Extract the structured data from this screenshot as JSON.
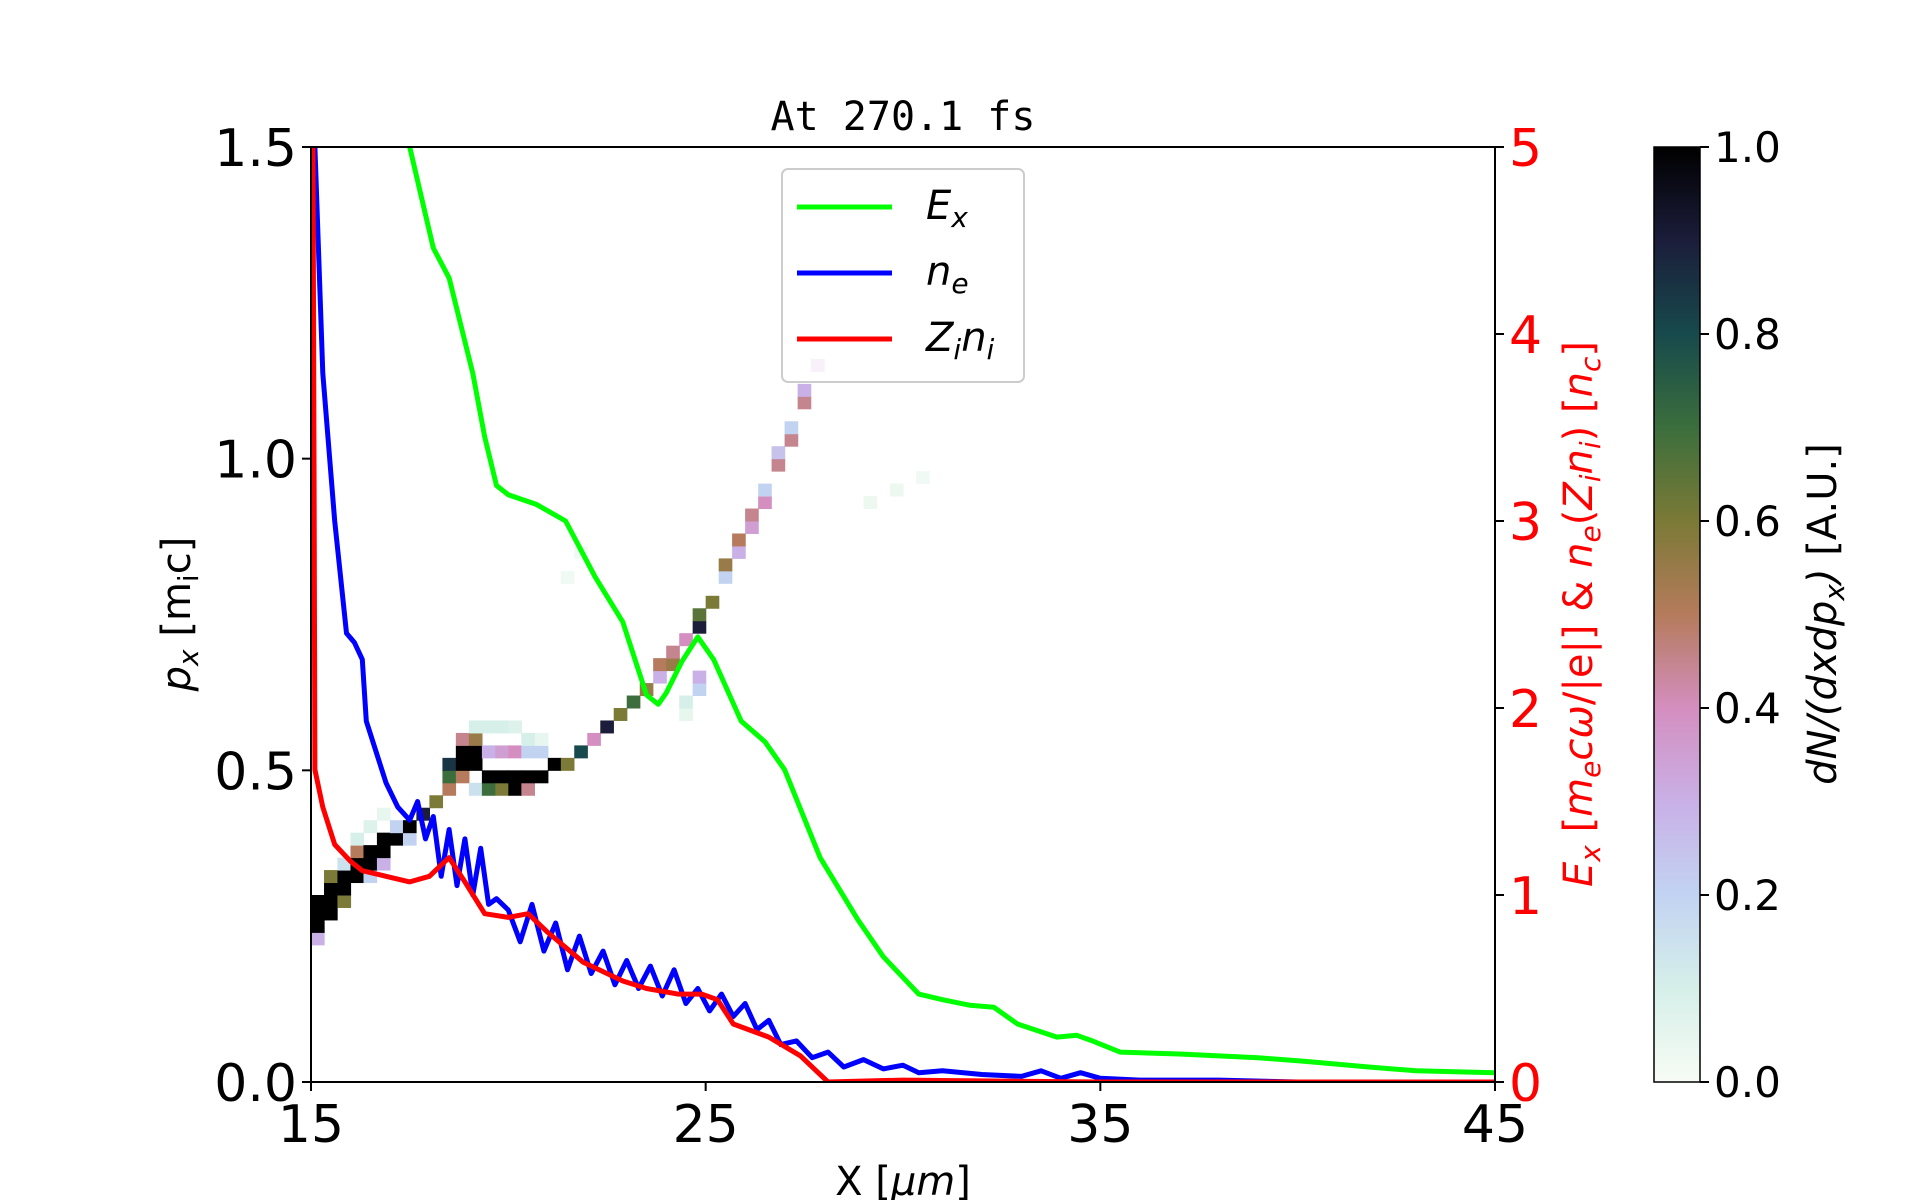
{
  "chart_data": {
    "type": "heatmap+line",
    "title": "At 270.1 fs",
    "xlabel": [
      {
        "t": "X  [",
        "s": 0
      },
      {
        "t": "μm",
        "s": 0,
        "i": 1
      },
      {
        "t": "]",
        "s": 0
      }
    ],
    "ylabel": [
      {
        "t": "p",
        "s": 0,
        "i": 1
      },
      {
        "t": "x",
        "s": 1,
        "i": 1
      },
      {
        "t": "  [m",
        "s": 0
      },
      {
        "t": "i",
        "s": 1
      },
      {
        "t": "c]",
        "s": 0
      }
    ],
    "y2label": [
      {
        "t": "E",
        "s": 0,
        "i": 1
      },
      {
        "t": "x",
        "s": 1,
        "i": 1
      },
      {
        "t": "  [",
        "s": 0
      },
      {
        "t": "m",
        "s": 0,
        "i": 1
      },
      {
        "t": "e",
        "s": 1,
        "i": 1
      },
      {
        "t": "cω",
        "s": 0,
        "i": 1
      },
      {
        "t": "/|e|]  &  ",
        "s": 0
      },
      {
        "t": "n",
        "s": 0,
        "i": 1
      },
      {
        "t": "e",
        "s": 1,
        "i": 1
      },
      {
        "t": "(",
        "s": 0
      },
      {
        "t": "Z",
        "s": 0,
        "i": 1
      },
      {
        "t": "i",
        "s": 1,
        "i": 1
      },
      {
        "t": "n",
        "s": 0,
        "i": 1
      },
      {
        "t": "i",
        "s": 1,
        "i": 1
      },
      {
        "t": ")  [",
        "s": 0
      },
      {
        "t": "n",
        "s": 0,
        "i": 1
      },
      {
        "t": "c",
        "s": 1,
        "i": 1
      },
      {
        "t": "]",
        "s": 0
      }
    ],
    "colorbar_label": [
      {
        "t": "dN/(dxdp",
        "s": 0,
        "i": 1
      },
      {
        "t": "x",
        "s": 1,
        "i": 1
      },
      {
        "t": ")",
        "s": 0,
        "i": 1
      },
      {
        "t": "  [A.U.]",
        "s": 0
      }
    ],
    "xlim": [
      15,
      45
    ],
    "ylim": [
      0,
      1.5
    ],
    "y2lim": [
      0,
      5
    ],
    "clim": [
      0,
      1
    ],
    "xticks": [
      "15",
      "25",
      "35",
      "45"
    ],
    "yticks": [
      "0.0",
      "0.5",
      "1.0",
      "1.5"
    ],
    "y2ticks": [
      "0",
      "1",
      "2",
      "3",
      "4",
      "5"
    ],
    "cticks": [
      "0.0",
      "0.2",
      "0.4",
      "0.6",
      "0.8",
      "1.0"
    ],
    "y2_color": "#ff0000",
    "grid": false,
    "legend_position": "top-center",
    "colormap": [
      "#f7fcf5",
      "#d6efe9",
      "#c2d3f2",
      "#c9b0e6",
      "#d48ebf",
      "#b57b5c",
      "#7b7a36",
      "#3b6e3c",
      "#174a4c",
      "#1b1d3a",
      "#000000"
    ],
    "heatmap_cells": [
      [
        15.0,
        0.22,
        0.3
      ],
      [
        15.0,
        0.24,
        1
      ],
      [
        15.0,
        0.26,
        1
      ],
      [
        15.0,
        0.28,
        1
      ],
      [
        15.33,
        0.26,
        1
      ],
      [
        15.33,
        0.28,
        1
      ],
      [
        15.33,
        0.3,
        1
      ],
      [
        15.33,
        0.32,
        0.6
      ],
      [
        15.67,
        0.28,
        0.6
      ],
      [
        15.67,
        0.3,
        1
      ],
      [
        15.67,
        0.32,
        1
      ],
      [
        15.67,
        0.34,
        0.15
      ],
      [
        16.0,
        0.32,
        1
      ],
      [
        16.0,
        0.34,
        1
      ],
      [
        16.0,
        0.36,
        0.5
      ],
      [
        16.0,
        0.38,
        0.1
      ],
      [
        16.33,
        0.32,
        0.2
      ],
      [
        16.33,
        0.34,
        1
      ],
      [
        16.33,
        0.36,
        1
      ],
      [
        16.33,
        0.4,
        0.08
      ],
      [
        16.67,
        0.34,
        0.3
      ],
      [
        16.67,
        0.36,
        1
      ],
      [
        16.67,
        0.38,
        1
      ],
      [
        16.67,
        0.42,
        0.05
      ],
      [
        17.0,
        0.38,
        1
      ],
      [
        17.0,
        0.4,
        0.2
      ],
      [
        17.33,
        0.38,
        0.2
      ],
      [
        17.33,
        0.4,
        1
      ],
      [
        17.67,
        0.42,
        0.9
      ],
      [
        18.0,
        0.44,
        0.6
      ],
      [
        18.33,
        0.46,
        0.5
      ],
      [
        18.33,
        0.48,
        0.7
      ],
      [
        18.33,
        0.5,
        0.85
      ],
      [
        18.67,
        0.48,
        0.5
      ],
      [
        18.67,
        0.5,
        1
      ],
      [
        18.67,
        0.52,
        1
      ],
      [
        18.67,
        0.54,
        0.45
      ],
      [
        19.0,
        0.46,
        0.15
      ],
      [
        19.0,
        0.5,
        1
      ],
      [
        19.0,
        0.52,
        1
      ],
      [
        19.0,
        0.54,
        0.55
      ],
      [
        19.0,
        0.56,
        0.1
      ],
      [
        19.33,
        0.46,
        0.7
      ],
      [
        19.33,
        0.48,
        1
      ],
      [
        19.33,
        0.52,
        0.3
      ],
      [
        19.33,
        0.56,
        0.1
      ],
      [
        19.67,
        0.46,
        0.6
      ],
      [
        19.67,
        0.48,
        1
      ],
      [
        19.67,
        0.52,
        0.35
      ],
      [
        19.67,
        0.56,
        0.1
      ],
      [
        20.0,
        0.46,
        1
      ],
      [
        20.0,
        0.48,
        1
      ],
      [
        20.0,
        0.52,
        0.4
      ],
      [
        20.0,
        0.56,
        0.08
      ],
      [
        20.33,
        0.46,
        0.45
      ],
      [
        20.33,
        0.48,
        1
      ],
      [
        20.33,
        0.52,
        0.2
      ],
      [
        20.33,
        0.54,
        0.1
      ],
      [
        20.67,
        0.48,
        1
      ],
      [
        20.67,
        0.52,
        0.2
      ],
      [
        20.67,
        0.54,
        0.05
      ],
      [
        21.0,
        0.5,
        1
      ],
      [
        21.33,
        0.5,
        0.6
      ],
      [
        21.67,
        0.52,
        0.8
      ],
      [
        22.0,
        0.54,
        0.4
      ],
      [
        22.33,
        0.56,
        0.9
      ],
      [
        22.67,
        0.58,
        0.6
      ],
      [
        23.0,
        0.6,
        0.7
      ],
      [
        23.33,
        0.62,
        0.55
      ],
      [
        23.67,
        0.64,
        0.3
      ],
      [
        23.67,
        0.66,
        0.5
      ],
      [
        24.0,
        0.66,
        0.55
      ],
      [
        24.0,
        0.68,
        0.45
      ],
      [
        24.33,
        0.7,
        0.4
      ],
      [
        24.33,
        0.58,
        0.05
      ],
      [
        24.33,
        0.6,
        0.1
      ],
      [
        24.67,
        0.62,
        0.2
      ],
      [
        24.67,
        0.64,
        0.3
      ],
      [
        24.67,
        0.72,
        0.9
      ],
      [
        24.67,
        0.74,
        0.65
      ],
      [
        25.0,
        0.76,
        0.6
      ],
      [
        25.33,
        0.8,
        0.2
      ],
      [
        25.33,
        0.82,
        0.55
      ],
      [
        25.67,
        0.84,
        0.3
      ],
      [
        25.67,
        0.86,
        0.5
      ],
      [
        26.0,
        0.88,
        0.35
      ],
      [
        26.0,
        0.9,
        0.45
      ],
      [
        26.33,
        0.92,
        0.4
      ],
      [
        26.33,
        0.94,
        0.2
      ],
      [
        26.67,
        0.98,
        0.45
      ],
      [
        26.67,
        1.0,
        0.25
      ],
      [
        27.0,
        1.02,
        0.45
      ],
      [
        27.0,
        1.04,
        0.2
      ],
      [
        27.33,
        1.08,
        0.45
      ],
      [
        27.33,
        1.1,
        0.3
      ],
      [
        27.67,
        1.14,
        0.35
      ],
      [
        21.33,
        0.8,
        0.02
      ],
      [
        21.67,
        0.84,
        0.02
      ],
      [
        29.0,
        0.92,
        0.03
      ],
      [
        29.67,
        0.94,
        0.03
      ],
      [
        30.33,
        0.96,
        0.02
      ]
    ],
    "series": [
      {
        "name": "E_x",
        "label": [
          {
            "t": "E",
            "s": 0
          },
          {
            "t": "x",
            "s": 1
          }
        ],
        "color": "#00ff00",
        "axis": "right",
        "x": [
          17.5,
          18.1,
          18.5,
          19.1,
          19.4,
          19.7,
          20.0,
          20.7,
          21.45,
          22.2,
          22.9,
          23.5,
          23.8,
          24.0,
          24.4,
          24.8,
          25.2,
          25.9,
          26.5,
          27.0,
          27.9,
          28.85,
          29.5,
          30.4,
          31.0,
          31.7,
          32.3,
          32.9,
          33.9,
          34.4,
          34.8,
          35.5,
          37.0,
          39.0,
          40.2,
          41.8,
          43.0,
          45.0
        ],
        "y": [
          5.0,
          4.46,
          4.3,
          3.79,
          3.45,
          3.19,
          3.14,
          3.09,
          3.0,
          2.7,
          2.46,
          2.07,
          2.02,
          2.08,
          2.25,
          2.38,
          2.26,
          1.93,
          1.82,
          1.67,
          1.2,
          0.87,
          0.67,
          0.47,
          0.44,
          0.41,
          0.4,
          0.31,
          0.24,
          0.25,
          0.22,
          0.16,
          0.15,
          0.13,
          0.11,
          0.08,
          0.06,
          0.05
        ]
      },
      {
        "name": "n_e",
        "label": [
          {
            "t": "n",
            "s": 0
          },
          {
            "t": "e",
            "s": 1
          }
        ],
        "color": "#0000ff",
        "axis": "right",
        "x": [
          15.1,
          15.3,
          15.6,
          15.9,
          16.1,
          16.3,
          16.4,
          16.9,
          17.2,
          17.5,
          17.7,
          17.9,
          18.1,
          18.3,
          18.5,
          18.7,
          18.9,
          19.1,
          19.3,
          19.5,
          19.7,
          20.0,
          20.3,
          20.6,
          20.9,
          21.2,
          21.5,
          21.8,
          22.1,
          22.4,
          22.7,
          23.0,
          23.3,
          23.6,
          23.9,
          24.2,
          24.5,
          24.8,
          25.1,
          25.4,
          25.7,
          26.0,
          26.3,
          26.6,
          26.9,
          27.3,
          27.7,
          28.1,
          28.5,
          29.0,
          29.5,
          30.0,
          30.4,
          31.0,
          32.0,
          33.0,
          33.5,
          34.0,
          34.5,
          35.0,
          36.0,
          38.0,
          40.0,
          45.0
        ],
        "y": [
          5.0,
          3.79,
          3.0,
          2.4,
          2.35,
          2.26,
          1.93,
          1.6,
          1.47,
          1.4,
          1.5,
          1.3,
          1.42,
          1.1,
          1.35,
          1.05,
          1.3,
          1.0,
          1.25,
          0.95,
          0.98,
          0.92,
          0.75,
          0.95,
          0.7,
          0.85,
          0.6,
          0.78,
          0.58,
          0.7,
          0.52,
          0.65,
          0.5,
          0.62,
          0.46,
          0.6,
          0.42,
          0.5,
          0.38,
          0.47,
          0.35,
          0.42,
          0.28,
          0.33,
          0.2,
          0.22,
          0.13,
          0.16,
          0.08,
          0.12,
          0.07,
          0.09,
          0.05,
          0.06,
          0.04,
          0.03,
          0.06,
          0.02,
          0.05,
          0.02,
          0.01,
          0.01,
          0.0,
          0.0
        ]
      },
      {
        "name": "Z_in_i",
        "label": [
          {
            "t": "Z",
            "s": 0
          },
          {
            "t": "i",
            "s": 1
          },
          {
            "t": "n",
            "s": 0
          },
          {
            "t": "i",
            "s": 1
          }
        ],
        "color": "#ff0000",
        "axis": "right",
        "x": [
          15.05,
          15.08,
          15.1,
          15.3,
          15.6,
          16.0,
          16.3,
          16.9,
          17.5,
          18.0,
          18.5,
          18.9,
          19.4,
          20.0,
          20.5,
          21.0,
          21.9,
          22.9,
          23.5,
          24.3,
          24.9,
          25.3,
          25.7,
          26.6,
          27.4,
          28.1,
          30.0,
          35.0,
          45.0
        ],
        "y": [
          5.0,
          3.0,
          1.67,
          1.47,
          1.27,
          1.18,
          1.13,
          1.1,
          1.07,
          1.1,
          1.2,
          1.07,
          0.9,
          0.88,
          0.9,
          0.8,
          0.64,
          0.54,
          0.5,
          0.47,
          0.47,
          0.44,
          0.31,
          0.24,
          0.14,
          0.0,
          0.01,
          0.0,
          0.0
        ]
      }
    ]
  }
}
